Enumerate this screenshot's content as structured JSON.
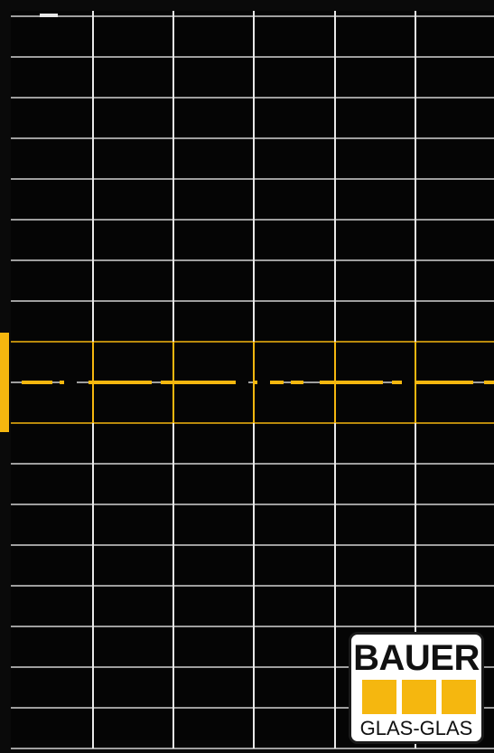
{
  "badge": {
    "title": "BAUER",
    "subtitle": "GLAS-GLAS"
  },
  "colors": {
    "frame": "#0a0a0a",
    "cell": "#050505",
    "grid": "#e9e9e9",
    "accent": "#f5b70f",
    "badge_border": "#1b1b1b"
  },
  "panel": {
    "columns": 6,
    "rows": 18
  }
}
